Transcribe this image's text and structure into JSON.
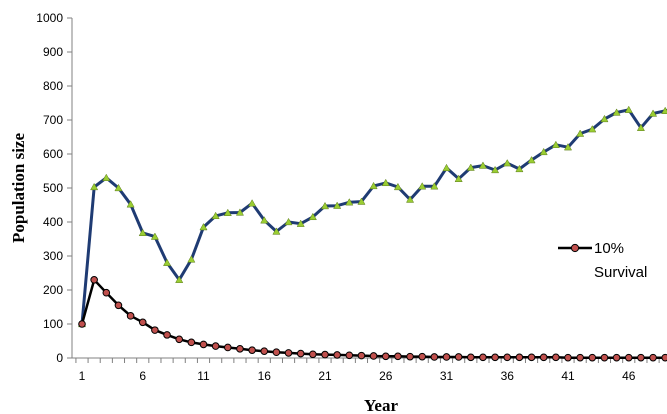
{
  "chart_data": {
    "type": "line",
    "xlabel": "Year",
    "ylabel": "Population size",
    "ylim": [
      0,
      1000
    ],
    "y_ticks": [
      "0",
      "100",
      "200",
      "300",
      "400",
      "500",
      "600",
      "700",
      "800",
      "900",
      "1000"
    ],
    "x_ticks": [
      "1",
      "6",
      "11",
      "16",
      "21",
      "26",
      "31",
      "36",
      "41",
      "46"
    ],
    "x_start": 1,
    "x_end": 50,
    "grid": false,
    "legend_position": "right",
    "legend": [
      "10%",
      "Survival"
    ],
    "series": [
      {
        "color": "#1f3b73",
        "marker": "triangle",
        "marker_color": "#9acd32",
        "values": [
          100,
          503,
          530,
          500,
          452,
          368,
          357,
          280,
          230,
          290,
          385,
          418,
          427,
          428,
          455,
          405,
          372,
          400,
          395,
          415,
          447,
          448,
          458,
          460,
          506,
          515,
          503,
          466,
          505,
          505,
          559,
          527,
          560,
          566,
          553,
          573,
          556,
          582,
          606,
          627,
          620,
          660,
          673,
          703,
          722,
          730,
          677,
          719,
          727,
          735
        ]
      },
      {
        "color": "#000000",
        "marker": "circle",
        "marker_color": "#c0504d",
        "values": [
          100,
          230,
          192,
          155,
          124,
          105,
          82,
          68,
          55,
          46,
          40,
          35,
          31,
          27,
          23,
          20,
          17,
          15,
          13,
          11,
          10,
          9,
          8,
          7,
          6,
          5,
          5,
          4,
          4,
          3,
          3,
          3,
          2,
          2,
          2,
          2,
          2,
          2,
          2,
          2,
          1,
          1,
          1,
          1,
          1,
          1,
          1,
          1,
          1,
          1
        ]
      }
    ]
  }
}
